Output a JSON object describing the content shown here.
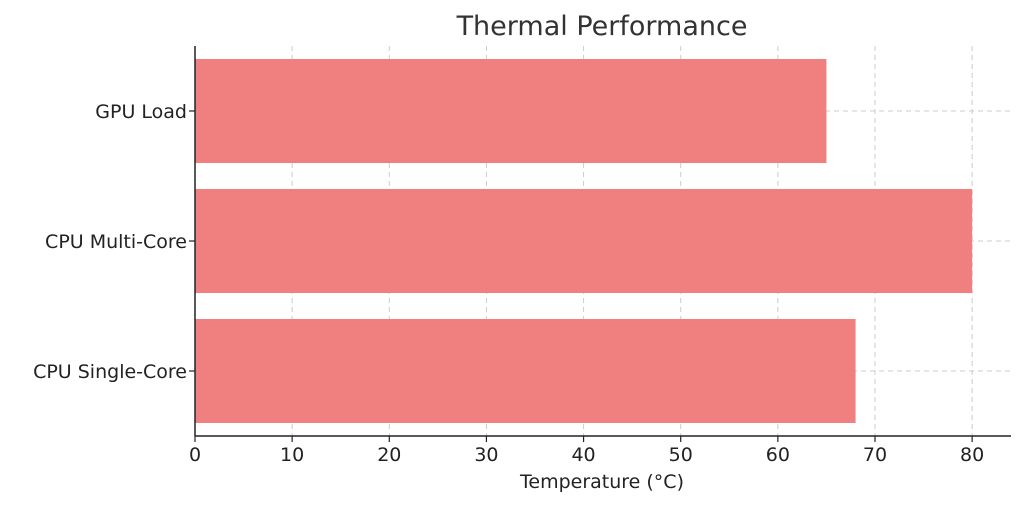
{
  "chart_data": {
    "type": "bar",
    "orientation": "horizontal",
    "title": "Thermal Performance",
    "xlabel": "Temperature (°C)",
    "ylabel": "",
    "categories": [
      "GPU Load",
      "CPU Multi-Core",
      "CPU Single-Core"
    ],
    "values": [
      65,
      80,
      68
    ],
    "xlim": [
      0,
      84
    ],
    "xticks": [
      0,
      10,
      20,
      30,
      40,
      50,
      60,
      70,
      80
    ],
    "grid": true,
    "bar_color": "#f08080"
  }
}
